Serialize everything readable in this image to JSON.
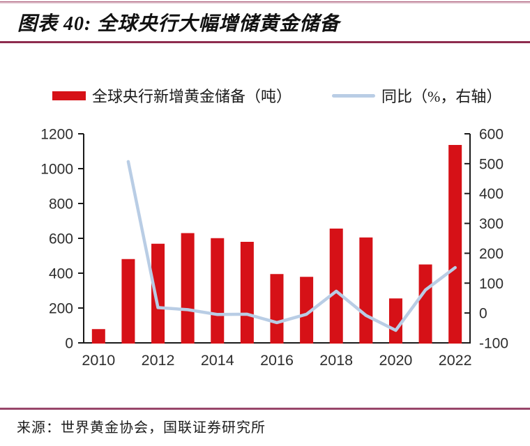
{
  "header": {
    "title": "图表 40:  全球央行大幅增储黄金储备"
  },
  "legend": {
    "bar": {
      "label": "全球央行新增黄金储备（吨）"
    },
    "line": {
      "label": "同比（%，右轴）"
    }
  },
  "footer": {
    "source": "来源：世界黄金协会，国联证券研究所"
  },
  "colors": {
    "bar": "#d61117",
    "line": "#b9cde5",
    "rule": "#8e2c4e",
    "axis": "#1a1a1a",
    "tick_text": "#2d2d2d"
  },
  "chart_data": {
    "type": "bar",
    "subtype": "bar+line combo, line on secondary axis",
    "title": "全球央行大幅增储黄金储备",
    "categories": [
      "2010",
      "2011",
      "2012",
      "2013",
      "2014",
      "2015",
      "2016",
      "2017",
      "2018",
      "2019",
      "2020",
      "2021",
      "2022"
    ],
    "series": [
      {
        "name": "全球央行新增黄金储备（吨）",
        "type": "bar",
        "axis": "left",
        "color": "#d61117",
        "values": [
          79,
          481,
          569,
          630,
          601,
          580,
          395,
          379,
          656,
          605,
          255,
          450,
          1136
        ]
      },
      {
        "name": "同比（%，右轴）",
        "type": "line",
        "axis": "right",
        "color": "#b9cde5",
        "values": [
          null,
          507,
          18,
          11,
          -5,
          -4,
          -32,
          -4,
          73,
          -8,
          -58,
          77,
          152
        ]
      }
    ],
    "left_axis": {
      "min": 0,
      "max": 1200,
      "step": 200,
      "tick_labels": [
        "0",
        "200",
        "400",
        "600",
        "800",
        "1000",
        "1200"
      ]
    },
    "right_axis": {
      "min": -100,
      "max": 600,
      "step": 100,
      "tick_labels": [
        "-100",
        "0",
        "100",
        "200",
        "300",
        "400",
        "500",
        "600"
      ]
    },
    "x_tick_labels": [
      "2010",
      "2012",
      "2014",
      "2016",
      "2018",
      "2020",
      "2022"
    ],
    "grid": "off",
    "legend_position": "top"
  }
}
